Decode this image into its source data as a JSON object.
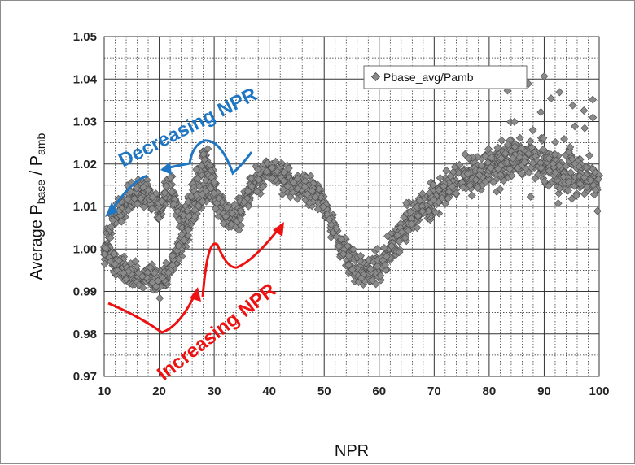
{
  "chart_data": {
    "type": "scatter",
    "xlabel": "NPR",
    "ylabel": {
      "prefix": "Average P",
      "sub1": "base",
      "mid": " / P",
      "sub2": "amb"
    },
    "xlim": [
      10,
      100
    ],
    "ylim": [
      0.97,
      1.05
    ],
    "x_ticks": [
      "10",
      "20",
      "30",
      "40",
      "50",
      "60",
      "70",
      "80",
      "90",
      "100"
    ],
    "y_ticks": [
      "0.97",
      "0.98",
      "0.99",
      "1.00",
      "1.01",
      "1.02",
      "1.03",
      "1.04",
      "1.05"
    ],
    "grid": true,
    "legend": {
      "placement": "top-right",
      "entries": [
        "Pbase_avg/Pamb"
      ]
    },
    "marker_color": "#8a8a8a",
    "series": [
      {
        "name": "Pbase_avg/Pamb",
        "trend_x": [
          10,
          11,
          12,
          13,
          14,
          15,
          16,
          17,
          18,
          19,
          20,
          21,
          22,
          23,
          24,
          25,
          26,
          27,
          28,
          29,
          30,
          31,
          32,
          33,
          34,
          35,
          36,
          37,
          38,
          39,
          40,
          41,
          42,
          43,
          44,
          45,
          46,
          47,
          48,
          49,
          50,
          51,
          52,
          53,
          54,
          55,
          56,
          57,
          58,
          59,
          60,
          61,
          62,
          63,
          64,
          65,
          66,
          67,
          68,
          69,
          70,
          72,
          74,
          76,
          78,
          80,
          82,
          84,
          86,
          88,
          90,
          92,
          94,
          96,
          98,
          100
        ],
        "trend_y": [
          1.0,
          1.004,
          1.007,
          1.009,
          1.011,
          1.012,
          1.013,
          1.014,
          1.013,
          1.011,
          1.01,
          1.013,
          1.015,
          1.01,
          1.007,
          1.009,
          1.013,
          1.017,
          1.021,
          1.02,
          1.014,
          1.01,
          1.008,
          1.007,
          1.008,
          1.01,
          1.013,
          1.015,
          1.016,
          1.017,
          1.018,
          1.018,
          1.017,
          1.016,
          1.015,
          1.015,
          1.015,
          1.014,
          1.013,
          1.012,
          1.01,
          1.007,
          1.004,
          1.001,
          0.999,
          0.997,
          0.995,
          0.994,
          0.994,
          0.995,
          0.996,
          0.998,
          1.0,
          1.002,
          1.004,
          1.006,
          1.008,
          1.009,
          1.01,
          1.011,
          1.012,
          1.014,
          1.016,
          1.017,
          1.018,
          1.019,
          1.02,
          1.021,
          1.022,
          1.021,
          1.02,
          1.019,
          1.018,
          1.018,
          1.017,
          1.016
        ],
        "lower_x": [
          10,
          11,
          12,
          13,
          14,
          15,
          16,
          17,
          18,
          19,
          20,
          21,
          22,
          23,
          24,
          25,
          26,
          27,
          28,
          29,
          30,
          31,
          32,
          33,
          34,
          35
        ],
        "lower_y": [
          1.0,
          0.998,
          0.997,
          0.996,
          0.995,
          0.994,
          0.994,
          0.993,
          0.993,
          0.993,
          0.992,
          0.993,
          0.995,
          0.998,
          1.001,
          1.004,
          1.007,
          1.01,
          1.013,
          1.015,
          1.013,
          1.011,
          1.009,
          1.008,
          1.008,
          1.009
        ],
        "spread": 0.0045
      }
    ],
    "annotations": [
      {
        "text": "Decreasing NPR",
        "color": "#1f77c4"
      },
      {
        "text": "Increasing NPR",
        "color": "#ee1111"
      }
    ]
  }
}
